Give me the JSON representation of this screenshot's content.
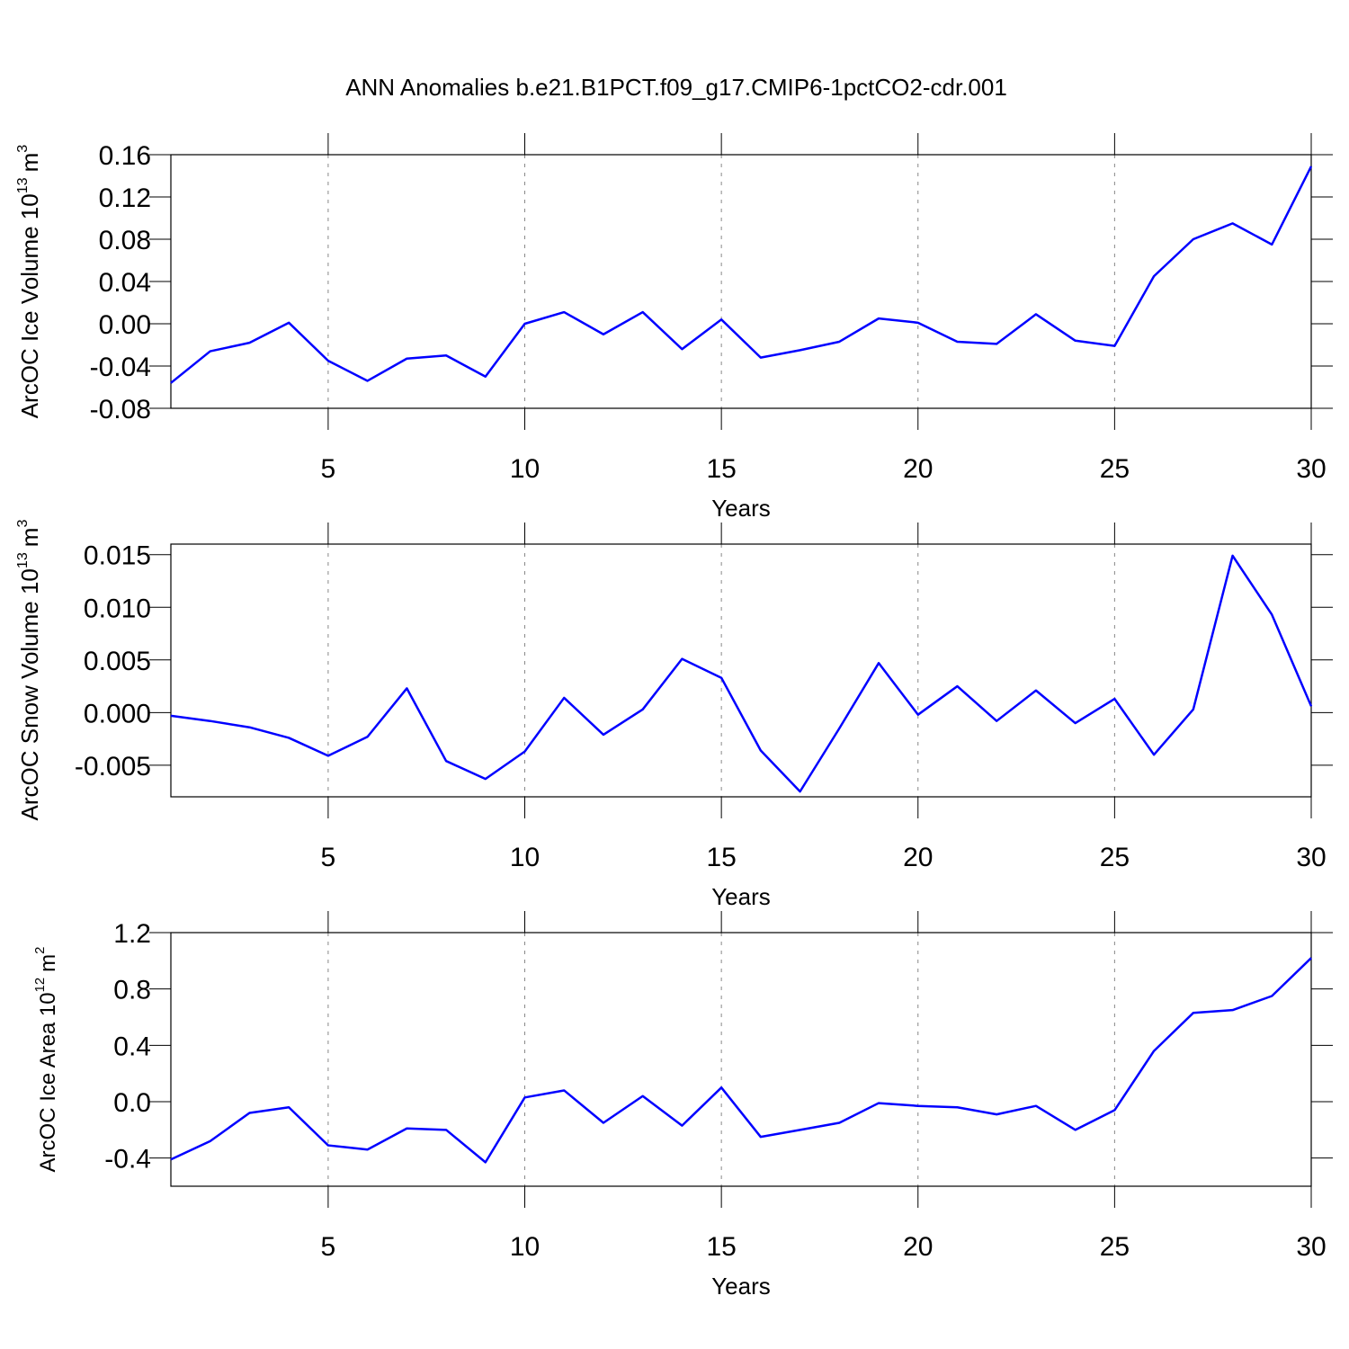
{
  "chart_data": [
    {
      "type": "line",
      "title": "ANN Anomalies b.e21.B1PCT.f09_g17.CMIP6-1pctCO2-cdr.001",
      "xlabel": "Years",
      "ylabel": {
        "text": "ArcOC Ice Volume 10",
        "exponent": "13",
        "unit": "m",
        "unit_exponent": "3"
      },
      "x": [
        1,
        2,
        3,
        4,
        5,
        6,
        7,
        8,
        9,
        10,
        11,
        12,
        13,
        14,
        15,
        16,
        17,
        18,
        19,
        20,
        21,
        22,
        23,
        24,
        25,
        26,
        27,
        28,
        29,
        30
      ],
      "series": [
        {
          "color": "#0000ff",
          "values": [
            -0.056,
            -0.026,
            -0.018,
            0.001,
            -0.035,
            -0.054,
            -0.033,
            -0.03,
            -0.05,
            0.0,
            0.011,
            -0.01,
            0.011,
            -0.024,
            0.004,
            -0.032,
            -0.025,
            -0.017,
            0.005,
            0.001,
            -0.017,
            -0.019,
            0.009,
            -0.016,
            -0.021,
            0.045,
            0.08,
            0.095,
            0.075,
            0.149
          ]
        }
      ],
      "xlim": [
        1,
        30
      ],
      "xticks": [
        5,
        10,
        15,
        20,
        25,
        30
      ],
      "ylim": [
        -0.08,
        0.16
      ],
      "yticks": [
        -0.08,
        -0.04,
        {
          "value": 0,
          "label": "0.00"
        },
        0.04,
        0.08,
        0.12,
        0.16
      ],
      "grid": "x"
    },
    {
      "type": "line",
      "xlabel": "Years",
      "ylabel": {
        "text": "ArcOC Snow Volume 10",
        "exponent": "13",
        "unit": "m",
        "unit_exponent": "3"
      },
      "x": [
        1,
        2,
        3,
        4,
        5,
        6,
        7,
        8,
        9,
        10,
        11,
        12,
        13,
        14,
        15,
        16,
        17,
        18,
        19,
        20,
        21,
        22,
        23,
        24,
        25,
        26,
        27,
        28,
        29,
        30
      ],
      "series": [
        {
          "color": "#0000ff",
          "values": [
            -0.0003,
            -0.0008,
            -0.0014,
            -0.0024,
            -0.0041,
            -0.0023,
            0.0023,
            -0.0046,
            -0.0063,
            -0.0037,
            0.0014,
            -0.0021,
            0.0003,
            0.0051,
            0.0033,
            -0.0036,
            -0.0075,
            -0.0015,
            0.0047,
            -0.0002,
            0.0025,
            -0.0008,
            0.0021,
            -0.001,
            0.0013,
            -0.004,
            0.0003,
            0.0149,
            0.0093,
            0.0006
          ]
        }
      ],
      "xlim": [
        1,
        30
      ],
      "xticks": [
        5,
        10,
        15,
        20,
        25,
        30
      ],
      "ylim": [
        -0.008,
        0.016
      ],
      "yticks": [
        -0.005,
        {
          "value": 0,
          "label": "0.000"
        },
        0.005,
        {
          "value": 0.01,
          "label": "0.010"
        },
        0.015
      ],
      "grid": "x"
    },
    {
      "type": "line",
      "xlabel": "Years",
      "ylabel": {
        "text": "ArcOC Ice Area 10",
        "exponent": "12",
        "unit": "m",
        "unit_exponent": "2"
      },
      "x": [
        1,
        2,
        3,
        4,
        5,
        6,
        7,
        8,
        9,
        10,
        11,
        12,
        13,
        14,
        15,
        16,
        17,
        18,
        19,
        20,
        21,
        22,
        23,
        24,
        25,
        26,
        27,
        28,
        29,
        30
      ],
      "series": [
        {
          "color": "#0000ff",
          "values": [
            -0.41,
            -0.28,
            -0.08,
            -0.04,
            -0.31,
            -0.34,
            -0.19,
            -0.2,
            -0.43,
            0.03,
            0.08,
            -0.15,
            0.04,
            -0.17,
            0.1,
            -0.25,
            -0.2,
            -0.15,
            -0.01,
            -0.03,
            -0.04,
            -0.09,
            -0.03,
            -0.2,
            -0.06,
            0.36,
            0.63,
            0.65,
            0.75,
            1.02
          ]
        }
      ],
      "xlim": [
        1,
        30
      ],
      "xticks": [
        5,
        10,
        15,
        20,
        25,
        30
      ],
      "ylim": [
        -0.6,
        1.2
      ],
      "yticks": [
        -0.4,
        {
          "value": 0,
          "label": "0.0"
        },
        0.4,
        0.8,
        1.2
      ],
      "grid": "x"
    }
  ]
}
